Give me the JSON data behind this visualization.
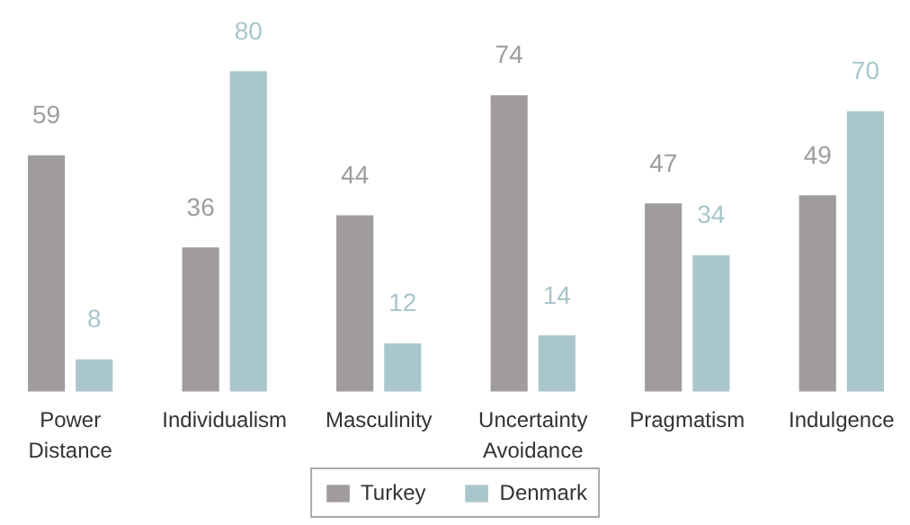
{
  "chart_data": {
    "type": "bar",
    "categories": [
      "Power Distance",
      "Individualism",
      "Masculinity",
      "Uncertainty Avoidance",
      "Pragmatism",
      "Indulgence"
    ],
    "series": [
      {
        "name": "Turkey",
        "color": "#a09c9e",
        "values": [
          59,
          36,
          44,
          74,
          47,
          49
        ]
      },
      {
        "name": "Denmark",
        "color": "#a9c6cc",
        "values": [
          8,
          80,
          12,
          14,
          34,
          70
        ]
      }
    ],
    "data_labels": true,
    "legend": "bottom",
    "grid": false
  }
}
